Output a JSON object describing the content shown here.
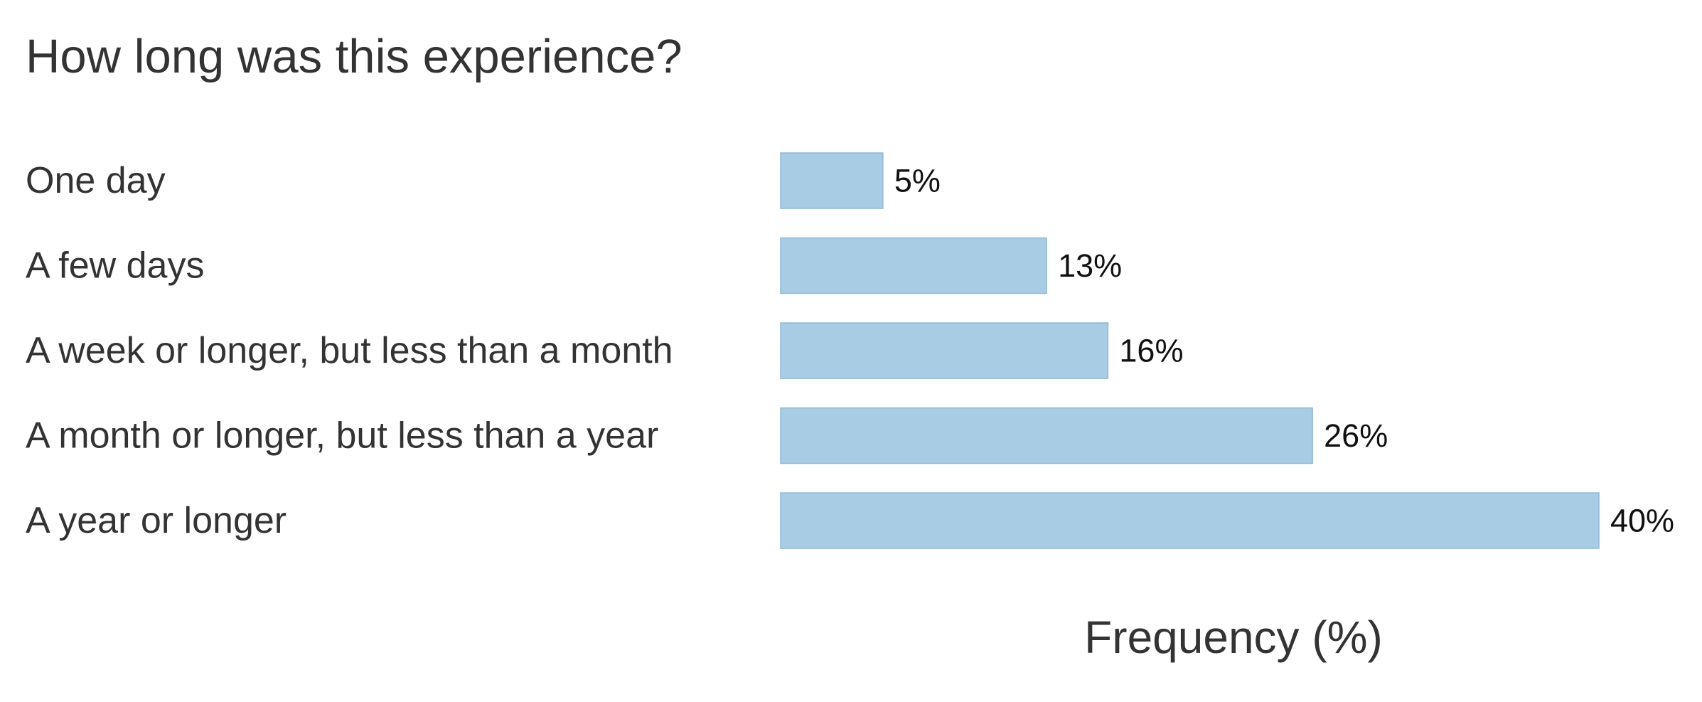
{
  "chart_data": {
    "type": "bar",
    "orientation": "horizontal",
    "title": "How long was this experience?",
    "xlabel": "Frequency (%)",
    "ylabel": "",
    "categories": [
      "One day",
      "A few days",
      "A week or longer, but less than a month",
      "A month or longer, but less than a year",
      "A year or longer"
    ],
    "values": [
      5,
      13,
      16,
      26,
      40
    ],
    "value_labels": [
      "5%",
      "13%",
      "16%",
      "26%",
      "40%"
    ],
    "xlim": [
      0,
      40
    ],
    "grid": false,
    "legend": "none",
    "colors": {
      "bar_fill": "#a8cce3",
      "bar_stroke": "#8fb9d6",
      "text": "#333333",
      "value_text": "#111111",
      "background": "#ffffff"
    }
  }
}
